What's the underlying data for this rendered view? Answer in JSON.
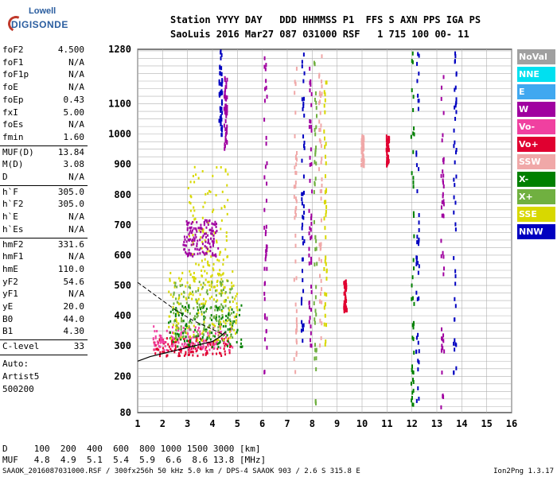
{
  "logo": {
    "top": "Lowell",
    "main": "DIGISONDE"
  },
  "header": {
    "line1": "Station YYYY DAY   DDD HHMMSS P1  FFS S AXN PPS IGA PS",
    "line2": "SaoLuis 2016 Mar27 087 031000 RSF   1 715 100 00- 11"
  },
  "params": [
    {
      "label": "foF2",
      "value": "4.500"
    },
    {
      "label": "foF1",
      "value": "N/A"
    },
    {
      "label": "foF1p",
      "value": "N/A"
    },
    {
      "label": "foE",
      "value": "N/A"
    },
    {
      "label": "foEp",
      "value": "0.43"
    },
    {
      "label": "fxI",
      "value": "5.00"
    },
    {
      "label": "foEs",
      "value": "N/A"
    },
    {
      "label": "fmin",
      "value": "1.60"
    },
    {
      "label": "MUF(D)",
      "value": "13.84"
    },
    {
      "label": "M(D)",
      "value": "3.08"
    },
    {
      "label": "D",
      "value": "N/A"
    },
    {
      "label": "h`F",
      "value": "305.0"
    },
    {
      "label": "h`F2",
      "value": "305.0"
    },
    {
      "label": "h`E",
      "value": "N/A"
    },
    {
      "label": "h`Es",
      "value": "N/A"
    },
    {
      "label": "hmF2",
      "value": "331.6"
    },
    {
      "label": "hmF1",
      "value": "N/A"
    },
    {
      "label": "hmE",
      "value": "110.0"
    },
    {
      "label": "yF2",
      "value": "54.6"
    },
    {
      "label": "yF1",
      "value": "N/A"
    },
    {
      "label": "yE",
      "value": "20.0"
    },
    {
      "label": "B0",
      "value": "44.0"
    },
    {
      "label": "B1",
      "value": "4.30"
    },
    {
      "label": "C-level",
      "value": "33"
    }
  ],
  "auto": {
    "line1": "Auto:",
    "line2": "Artist5",
    "line3": "500200"
  },
  "legend": [
    {
      "label": "NoVal",
      "color": "#a0a0a0"
    },
    {
      "label": "NNE",
      "color": "#00e0f0"
    },
    {
      "label": "E",
      "color": "#40a8f0"
    },
    {
      "label": "W",
      "color": "#a000a0"
    },
    {
      "label": "Vo-",
      "color": "#f040a0"
    },
    {
      "label": "Vo+",
      "color": "#e00030"
    },
    {
      "label": "SSW",
      "color": "#f0a8a8"
    },
    {
      "label": "X-",
      "color": "#008000"
    },
    {
      "label": "X+",
      "color": "#70b040"
    },
    {
      "label": "SSE",
      "color": "#d8d800"
    },
    {
      "label": "NNW",
      "color": "#0000c0"
    }
  ],
  "chart_data": {
    "type": "scatter",
    "xlim": [
      1,
      16
    ],
    "ylim": [
      80,
      1280
    ],
    "x_ticks": [
      "1",
      "2",
      "3",
      "4",
      "5",
      "6",
      "7",
      "8",
      "9",
      "10",
      "11",
      "12",
      "13",
      "14",
      "15",
      "16"
    ],
    "y_ticks": [
      {
        "v": 80,
        "label": "80"
      },
      {
        "v": 200,
        "label": "200"
      },
      {
        "v": 300,
        "label": "300"
      },
      {
        "v": 400,
        "label": "400"
      },
      {
        "v": 500,
        "label": "500"
      },
      {
        "v": 600,
        "label": "600"
      },
      {
        "v": 700,
        "label": "700"
      },
      {
        "v": 800,
        "label": "800"
      },
      {
        "v": 900,
        "label": "900"
      },
      {
        "v": 1000,
        "label": "1000"
      },
      {
        "v": 1100,
        "label": "1100"
      },
      {
        "v": 1280,
        "label": "1280"
      }
    ],
    "grid": true,
    "trace_f_layer": [
      [
        1.0,
        250
      ],
      [
        1.5,
        265
      ],
      [
        2.0,
        275
      ],
      [
        2.5,
        285
      ],
      [
        3.0,
        295
      ],
      [
        3.5,
        305
      ],
      [
        4.0,
        315
      ],
      [
        4.3,
        330
      ],
      [
        4.5,
        345
      ]
    ],
    "profile_dashed": [
      [
        1.0,
        510
      ],
      [
        1.5,
        480
      ],
      [
        2.0,
        450
      ],
      [
        2.5,
        420
      ],
      [
        2.8,
        405
      ],
      [
        3.2,
        385
      ],
      [
        3.6,
        370
      ],
      [
        4.0,
        355
      ],
      [
        4.5,
        335
      ]
    ],
    "band_clusters": [
      {
        "x": [
          1.6,
          4.8
        ],
        "y": [
          270,
          330
        ],
        "color": "#e00030"
      },
      {
        "x": [
          1.6,
          4.8
        ],
        "y": [
          290,
          370
        ],
        "color": "#f040a0"
      },
      {
        "x": [
          2.2,
          5.2
        ],
        "y": [
          300,
          440
        ],
        "color": "#008000"
      },
      {
        "x": [
          2.2,
          5.0
        ],
        "y": [
          320,
          560
        ],
        "color": "#d8d800"
      },
      {
        "x": [
          3.0,
          4.6
        ],
        "y": [
          450,
          900
        ],
        "color": "#d8d800"
      },
      {
        "x": [
          2.8,
          4.2
        ],
        "y": [
          600,
          720
        ],
        "color": "#a000a0"
      },
      {
        "x": [
          2.4,
          4.8
        ],
        "y": [
          330,
          520
        ],
        "color": "#70b040"
      }
    ],
    "vertical_streaks": [
      {
        "x": 4.3,
        "y": [
          1000,
          1280
        ],
        "color": "#0000c0"
      },
      {
        "x": 4.5,
        "y": [
          950,
          1200
        ],
        "color": "#a000a0"
      },
      {
        "x": 6.1,
        "y": [
          200,
          1280
        ],
        "color": "#a000a0"
      },
      {
        "x": 7.3,
        "y": [
          200,
          1280
        ],
        "color": "#f0a8a8"
      },
      {
        "x": 7.6,
        "y": [
          300,
          1280
        ],
        "color": "#0000c0"
      },
      {
        "x": 7.9,
        "y": [
          300,
          1280
        ],
        "color": "#a000a0"
      },
      {
        "x": 8.1,
        "y": [
          80,
          1280
        ],
        "color": "#70b040"
      },
      {
        "x": 8.3,
        "y": [
          300,
          1280
        ],
        "color": "#f0a8a8"
      },
      {
        "x": 8.5,
        "y": [
          300,
          1200
        ],
        "color": "#d8d800"
      },
      {
        "x": 9.3,
        "y": [
          420,
          520
        ],
        "color": "#e00030"
      },
      {
        "x": 10.0,
        "y": [
          900,
          1000
        ],
        "color": "#f0a8a8"
      },
      {
        "x": 11.0,
        "y": [
          900,
          1000
        ],
        "color": "#e00030"
      },
      {
        "x": 12.0,
        "y": [
          80,
          1280
        ],
        "color": "#008000"
      },
      {
        "x": 12.2,
        "y": [
          80,
          1280
        ],
        "color": "#0000c0"
      },
      {
        "x": 13.2,
        "y": [
          80,
          1280
        ],
        "color": "#a000a0"
      },
      {
        "x": 13.7,
        "y": [
          200,
          1280
        ],
        "color": "#0000c0"
      }
    ]
  },
  "bottom": {
    "d_row": "D     100  200  400  600  800 1000 1500 3000 [km]",
    "muf_row": "MUF   4.8  4.9  5.1  5.4  5.9  6.6  8.6 13.8 [MHz]"
  },
  "footer": {
    "left": "SAAOK_2016087031000.RSF / 300fx256h 50 kHz 5.0 km / DPS-4 SAAOK 903 / 2.6 S 315.8 E",
    "right": "Ion2Png 1.3.17"
  }
}
